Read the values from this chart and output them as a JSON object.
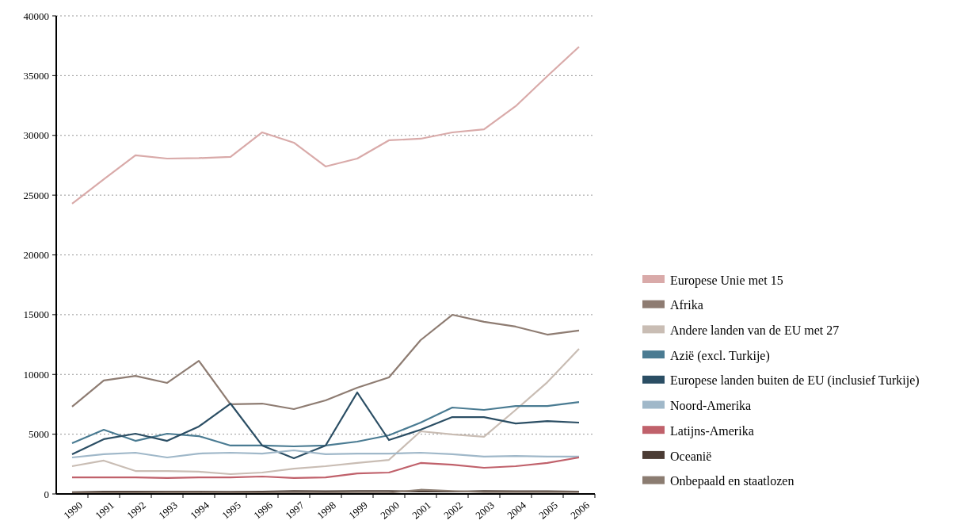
{
  "chart_data": {
    "type": "line",
    "categories": [
      "1990",
      "1991",
      "1992",
      "1993",
      "1994",
      "1995",
      "1996",
      "1997",
      "1998",
      "1999",
      "2000",
      "2001",
      "2002",
      "2003",
      "2004",
      "2005",
      "2006"
    ],
    "series": [
      {
        "name": "Europese Unie met 15",
        "color": "#d9aaa9",
        "values": [
          24280,
          26330,
          28330,
          28060,
          28100,
          28200,
          30250,
          29390,
          27400,
          28060,
          29590,
          29720,
          30250,
          30510,
          32440,
          34960,
          37410
        ]
      },
      {
        "name": "Afrika",
        "color": "#8e7c72",
        "values": [
          7300,
          9490,
          9880,
          9290,
          11140,
          7500,
          7560,
          7100,
          7830,
          8890,
          9750,
          12870,
          14990,
          14400,
          14000,
          13330,
          13670
        ]
      },
      {
        "name": "Andere landen van de EU met 27",
        "color": "#c9bdb4",
        "values": [
          2320,
          2790,
          1920,
          1920,
          1860,
          1660,
          1790,
          2120,
          2320,
          2590,
          2850,
          5240,
          4980,
          4780,
          7030,
          9350,
          12140
        ]
      },
      {
        "name": "Azië (excl. Turkije)",
        "color": "#4a7b92",
        "values": [
          4250,
          5370,
          4440,
          5040,
          4840,
          4050,
          4050,
          3980,
          4050,
          4380,
          4910,
          5970,
          7230,
          7030,
          7360,
          7360,
          7690
        ]
      },
      {
        "name": "Europese landen buiten de EU (inclusief Turkije)",
        "color": "#2b4e64",
        "values": [
          3320,
          4580,
          5040,
          4440,
          5640,
          7560,
          4050,
          2990,
          4050,
          8490,
          4510,
          5370,
          6430,
          6430,
          5900,
          6100,
          5970
        ]
      },
      {
        "name": "Noord-Amerika",
        "color": "#a0b8c9",
        "values": [
          3050,
          3320,
          3450,
          3050,
          3380,
          3450,
          3380,
          3650,
          3320,
          3380,
          3380,
          3450,
          3320,
          3120,
          3180,
          3120,
          3120
        ]
      },
      {
        "name": "Latijns-Amerika",
        "color": "#c0616b",
        "values": [
          1390,
          1390,
          1390,
          1330,
          1390,
          1390,
          1460,
          1330,
          1390,
          1720,
          1790,
          2590,
          2450,
          2190,
          2320,
          2590,
          3050
        ]
      },
      {
        "name": "Oceanië",
        "color": "#4b3c34",
        "values": [
          150,
          200,
          200,
          200,
          200,
          180,
          200,
          250,
          230,
          250,
          250,
          200,
          200,
          250,
          230,
          230,
          200
        ]
      },
      {
        "name": "Onbepaald en staatlozen",
        "color": "#8b7c71",
        "values": [
          100,
          100,
          100,
          120,
          120,
          100,
          100,
          100,
          100,
          100,
          100,
          350,
          250,
          150,
          150,
          150,
          150
        ]
      }
    ],
    "ylim": [
      0,
      40000
    ],
    "yticks": [
      0,
      5000,
      10000,
      15000,
      20000,
      25000,
      30000,
      35000,
      40000
    ],
    "grid": "y",
    "legend": "right",
    "marker": "none",
    "line_style": "solid"
  }
}
